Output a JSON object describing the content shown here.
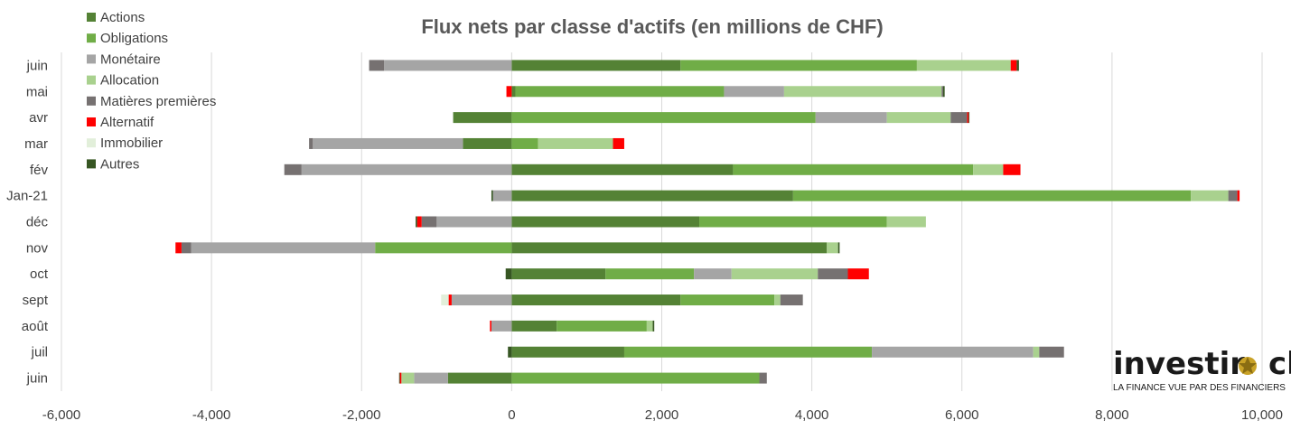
{
  "chart_data": {
    "type": "bar",
    "orientation": "horizontal",
    "stacked": true,
    "title": "Flux nets par classe d'actifs (en millions de CHF)",
    "xlim": [
      -6000,
      10000
    ],
    "x_ticks": [
      -6000,
      -4000,
      -2000,
      0,
      2000,
      4000,
      6000,
      8000,
      10000
    ],
    "x_tick_labels": [
      "-6,000",
      "-4,000",
      "-2,000",
      "0",
      "2,000",
      "4,000",
      "6,000",
      "8,000",
      "10,000"
    ],
    "grid": "vertical",
    "legend_position": "top-left",
    "categories": [
      "juin",
      "mai",
      "avr",
      "mar",
      "fév",
      "Jan-21",
      "déc",
      "nov",
      "oct",
      "sept",
      "août",
      "juil",
      "juin"
    ],
    "series": [
      {
        "name": "Actions",
        "color": "#548235",
        "values": [
          2250,
          50,
          -780,
          -650,
          2950,
          3750,
          2500,
          4200,
          1250,
          2250,
          600,
          1500,
          -850
        ]
      },
      {
        "name": "Obligations",
        "color": "#70ad47",
        "values": [
          3150,
          2780,
          4050,
          350,
          3200,
          5300,
          2500,
          -1820,
          1180,
          1250,
          1200,
          3300,
          3300
        ]
      },
      {
        "name": "Monétaire",
        "color": "#a5a5a5",
        "values": [
          -1700,
          800,
          950,
          -2000,
          -2800,
          -250,
          -1000,
          -2450,
          500,
          -800,
          -270,
          2150,
          -450
        ]
      },
      {
        "name": "Allocation",
        "color": "#a9d18e",
        "values": [
          1250,
          2100,
          850,
          1000,
          400,
          500,
          520,
          150,
          1150,
          80,
          80,
          80,
          -170
        ]
      },
      {
        "name": "Matières premières",
        "color": "#767171",
        "values": [
          -200,
          20,
          220,
          -50,
          -230,
          120,
          -200,
          -130,
          400,
          300,
          0,
          330,
          100
        ]
      },
      {
        "name": "Alternatif",
        "color": "#ff0000",
        "values": [
          80,
          -70,
          20,
          150,
          230,
          30,
          -60,
          -80,
          280,
          -40,
          -20,
          0,
          -20
        ]
      },
      {
        "name": "Immobilier",
        "color": "#e2efda",
        "values": [
          0,
          0,
          0,
          0,
          0,
          0,
          0,
          0,
          0,
          -100,
          0,
          0,
          0
        ]
      },
      {
        "name": "Autres",
        "color": "#375623",
        "values": [
          30,
          20,
          10,
          0,
          0,
          -20,
          -20,
          20,
          -80,
          0,
          20,
          -50,
          -10
        ]
      }
    ]
  },
  "logo": {
    "text_before": "investir",
    "text_after": "ch",
    "tagline": "LA FINANCE  VUE PAR DES FINANCIERS"
  }
}
